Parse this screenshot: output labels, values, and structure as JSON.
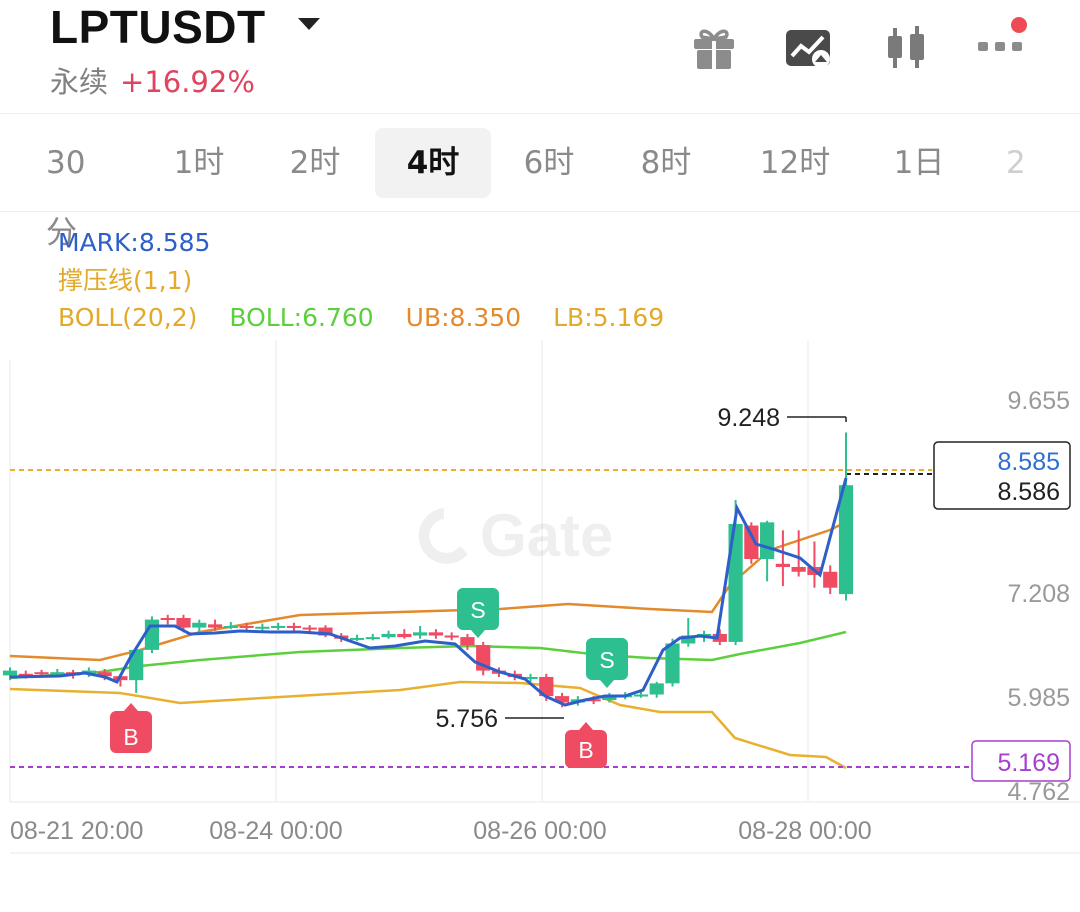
{
  "header": {
    "pair": "LPTUSDT",
    "kind": "永续",
    "change": "+16.92%",
    "icons": [
      "gift-icon",
      "chart-switch-icon",
      "candlestick-icon",
      "more-icon"
    ]
  },
  "tabs": [
    {
      "label": "30分"
    },
    {
      "label": "1时"
    },
    {
      "label": "2时"
    },
    {
      "label": "4时",
      "active": true
    },
    {
      "label": "6时"
    },
    {
      "label": "8时"
    },
    {
      "label": "12时"
    },
    {
      "label": "1日"
    },
    {
      "label": "2"
    }
  ],
  "legend": {
    "mark": "MARK:8.585",
    "line2": "撑压线(1,1)",
    "boll_params": "BOLL(20,2)",
    "boll": "BOLL:6.760",
    "ub": "UB:8.350",
    "lb": "LB:5.169"
  },
  "chart_data": {
    "type": "candlestick",
    "y_ticks": [
      "9.655",
      "7.208",
      "5.985",
      "4.762"
    ],
    "x_ticks": [
      "08-21 20:00",
      "08-24 00:00",
      "08-26 00:00",
      "08-28 00:00"
    ],
    "ylim": [
      4.762,
      9.655
    ],
    "mark_price": "8.585",
    "last_price": "8.586",
    "lower_band_label": "5.169",
    "high_label": "9.248",
    "low_label": "5.756",
    "trade_markers": [
      "B",
      "S",
      "S",
      "B"
    ],
    "colors": {
      "up": "#2dbf8f",
      "down": "#ef4b62",
      "mark": "#2e5fc8",
      "ub": "#e38a2c",
      "boll": "#5dcf3f",
      "lb": "#e8b030",
      "support": "#a63fd0"
    },
    "candles": [
      [
        6.2,
        6.26,
        6.3,
        6.14
      ],
      [
        6.22,
        6.2,
        6.26,
        6.16
      ],
      [
        6.24,
        6.23,
        6.27,
        6.18
      ],
      [
        6.22,
        6.24,
        6.28,
        6.18
      ],
      [
        6.24,
        6.2,
        6.27,
        6.16
      ],
      [
        6.22,
        6.26,
        6.3,
        6.18
      ],
      [
        6.24,
        6.19,
        6.28,
        6.14
      ],
      [
        6.19,
        6.14,
        6.22,
        6.06
      ],
      [
        6.14,
        6.52,
        6.56,
        5.98
      ],
      [
        6.52,
        6.9,
        6.94,
        6.48
      ],
      [
        6.92,
        6.9,
        6.96,
        6.84
      ],
      [
        6.92,
        6.8,
        6.96,
        6.74
      ],
      [
        6.8,
        6.86,
        6.9,
        6.74
      ],
      [
        6.84,
        6.8,
        6.9,
        6.76
      ],
      [
        6.82,
        6.82,
        6.87,
        6.78
      ],
      [
        6.82,
        6.8,
        6.86,
        6.76
      ],
      [
        6.8,
        6.81,
        6.85,
        6.76
      ],
      [
        6.8,
        6.82,
        6.86,
        6.77
      ],
      [
        6.82,
        6.8,
        6.86,
        6.76
      ],
      [
        6.8,
        6.79,
        6.83,
        6.74
      ],
      [
        6.8,
        6.7,
        6.83,
        6.68
      ],
      [
        6.7,
        6.66,
        6.73,
        6.62
      ],
      [
        6.66,
        6.67,
        6.71,
        6.63
      ],
      [
        6.67,
        6.68,
        6.72,
        6.64
      ],
      [
        6.68,
        6.72,
        6.76,
        6.66
      ],
      [
        6.72,
        6.68,
        6.78,
        6.66
      ],
      [
        6.7,
        6.74,
        6.82,
        6.66
      ],
      [
        6.74,
        6.7,
        6.78,
        6.66
      ],
      [
        6.7,
        6.68,
        6.74,
        6.64
      ],
      [
        6.68,
        6.58,
        6.72,
        6.52
      ],
      [
        6.58,
        6.26,
        6.62,
        6.2
      ],
      [
        6.26,
        6.22,
        6.3,
        6.18
      ],
      [
        6.22,
        6.18,
        6.26,
        6.14
      ],
      [
        6.18,
        6.18,
        6.22,
        6.12
      ],
      [
        6.18,
        5.94,
        6.22,
        5.88
      ],
      [
        5.94,
        5.86,
        5.98,
        5.8
      ],
      [
        5.86,
        5.9,
        5.94,
        5.82
      ],
      [
        5.9,
        5.88,
        5.94,
        5.84
      ],
      [
        5.89,
        5.94,
        5.98,
        5.86
      ],
      [
        5.94,
        5.95,
        5.99,
        5.9
      ],
      [
        5.95,
        5.96,
        6.0,
        5.92
      ],
      [
        5.96,
        6.1,
        6.12,
        5.92
      ],
      [
        6.1,
        6.6,
        6.66,
        6.06
      ],
      [
        6.6,
        6.7,
        6.92,
        6.56
      ],
      [
        6.72,
        6.72,
        6.76,
        6.62
      ],
      [
        6.72,
        6.62,
        6.78,
        6.58
      ],
      [
        6.62,
        8.1,
        8.4,
        6.58
      ],
      [
        8.08,
        7.66,
        8.12,
        7.6
      ],
      [
        7.66,
        8.12,
        8.14,
        7.38
      ],
      [
        7.6,
        7.56,
        8.02,
        7.32
      ],
      [
        7.56,
        7.5,
        8.02,
        7.44
      ],
      [
        7.56,
        7.46,
        7.88,
        7.3
      ],
      [
        7.5,
        7.3,
        7.58,
        7.22
      ],
      [
        7.22,
        8.586,
        9.248,
        7.14
      ]
    ]
  }
}
